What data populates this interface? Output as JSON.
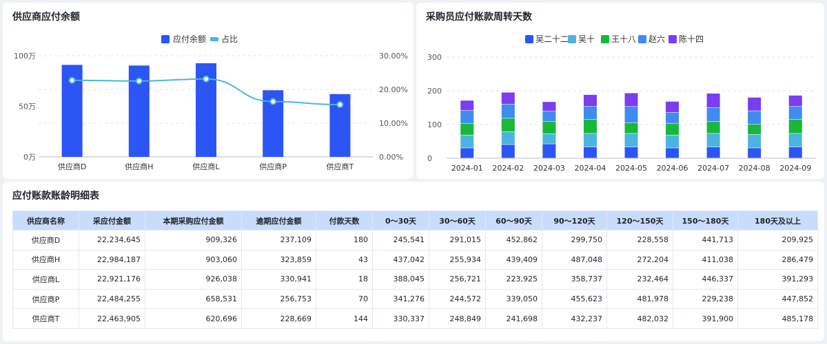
{
  "panels": {
    "left_title": "供应商应付余额",
    "right_title": "采购员应付账款周转天数",
    "table_title": "应付账款账龄明细表"
  },
  "colors": {
    "bar_blue": "#2b55f5",
    "line_cyan": "#4bb4e0",
    "header_bg": "#c8ddfb"
  },
  "chart_data": [
    {
      "type": "bar",
      "name": "supplier-balance",
      "categories": [
        "供应商D",
        "供应商H",
        "供应商L",
        "供应商P",
        "供应商T"
      ],
      "y_ticks": [
        "0万",
        "50万",
        "100万"
      ],
      "y2_ticks": [
        "0.00%",
        "10.00%",
        "20.00%",
        "30.00%"
      ],
      "ylim": [
        0,
        1000000
      ],
      "y2lim": [
        0,
        30
      ],
      "legend": [
        "应付余额",
        "占比"
      ],
      "legend_position": "top-center",
      "series": [
        {
          "name": "应付余额",
          "type": "bar",
          "values": [
            909326,
            903060,
            926038,
            658531,
            620696
          ]
        },
        {
          "name": "占比",
          "type": "line",
          "axis": "right",
          "values": [
            22.7,
            22.5,
            23.1,
            16.4,
            15.5
          ]
        }
      ]
    },
    {
      "type": "bar",
      "stacked": true,
      "name": "buyer-turnover-days",
      "categories": [
        "2024-01",
        "2024-02",
        "2024-03",
        "2024-04",
        "2024-05",
        "2024-06",
        "2024-07",
        "2024-08",
        "2024-09"
      ],
      "y_ticks": [
        "0",
        "100",
        "200",
        "300"
      ],
      "ylim": [
        0,
        300
      ],
      "legend_position": "top-center",
      "series": [
        {
          "name": "吴二十二",
          "color": "#2b55f5",
          "values": [
            30,
            40,
            42,
            33,
            33,
            30,
            33,
            30,
            33
          ]
        },
        {
          "name": "吴十",
          "color": "#4bb4e0",
          "values": [
            38,
            38,
            30,
            40,
            40,
            38,
            40,
            40,
            40
          ]
        },
        {
          "name": "王十八",
          "color": "#18b83a",
          "values": [
            35,
            40,
            37,
            42,
            32,
            35,
            35,
            30,
            42
          ]
        },
        {
          "name": "赵六",
          "color": "#3e8cf0",
          "values": [
            38,
            42,
            30,
            38,
            48,
            32,
            42,
            40,
            38
          ]
        },
        {
          "name": "陈十四",
          "color": "#7b3cf2",
          "values": [
            30,
            35,
            28,
            35,
            40,
            33,
            42,
            40,
            33
          ]
        }
      ]
    }
  ],
  "table": {
    "headers": [
      "供应商名称",
      "采应付金额",
      "本期采购应付金额",
      "逾期应付金额",
      "付款天数",
      "0～30天",
      "30～60天",
      "60～90天",
      "90～120天",
      "120～150天",
      "150～180天",
      "180天及以上"
    ],
    "rows": [
      [
        "供应商D",
        "22,234,645",
        "909,326",
        "237,109",
        "180",
        "245,541",
        "291,015",
        "452,862",
        "299,750",
        "228,558",
        "441,713",
        "209,925"
      ],
      [
        "供应商H",
        "22,984,187",
        "903,060",
        "323,859",
        "43",
        "437,042",
        "255,934",
        "439,409",
        "487,048",
        "272,204",
        "411,038",
        "286,479"
      ],
      [
        "供应商L",
        "22,921,176",
        "926,038",
        "330,941",
        "18",
        "388,045",
        "256,721",
        "223,925",
        "358,737",
        "232,464",
        "446,337",
        "391,293"
      ],
      [
        "供应商P",
        "22,484,255",
        "658,531",
        "256,753",
        "70",
        "341,276",
        "244,572",
        "339,050",
        "455,623",
        "481,978",
        "229,238",
        "447,852"
      ],
      [
        "供应商T",
        "22,463,905",
        "620,696",
        "228,669",
        "144",
        "330,337",
        "248,849",
        "241,698",
        "432,237",
        "482,032",
        "391,900",
        "485,178"
      ]
    ]
  }
}
